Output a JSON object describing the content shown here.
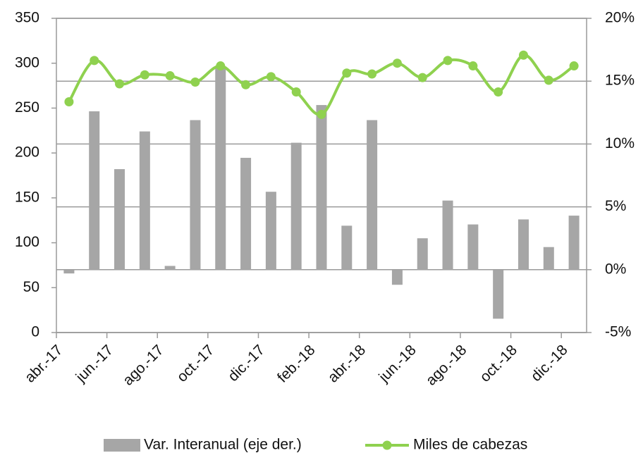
{
  "chart_data": {
    "type": "combo",
    "categories": [
      "abr.-17",
      null,
      "jun.-17",
      null,
      "ago.-17",
      null,
      "oct.-17",
      null,
      "dic.-17",
      null,
      "feb.-18",
      null,
      "abr.-18",
      null,
      "jun.-18",
      null,
      "ago.-18",
      null,
      "oct.-18",
      null,
      "dic.-18"
    ],
    "series": [
      {
        "name": "Var. Interanual (eje der.)",
        "type": "bar",
        "axis": "y2",
        "color": "#a6a6a6",
        "values": [
          -0.3,
          12.6,
          8.0,
          11.0,
          0.3,
          11.9,
          16.2,
          8.9,
          6.2,
          10.1,
          13.1,
          3.5,
          11.9,
          -1.2,
          2.5,
          5.5,
          3.6,
          -3.9,
          4.0,
          1.8,
          4.3
        ]
      },
      {
        "name": "Miles de cabezas",
        "type": "line",
        "axis": "y",
        "color": "#8fd14f",
        "values": [
          257,
          303,
          277,
          287,
          286,
          279,
          297,
          276,
          285,
          268,
          243,
          289,
          288,
          300,
          284,
          303,
          297,
          268,
          309,
          281,
          297
        ]
      }
    ],
    "ylim": [
      0,
      350
    ],
    "yticks": [
      0,
      50,
      100,
      150,
      200,
      250,
      300,
      350
    ],
    "y2lim": [
      -5,
      20
    ],
    "y2ticks": [
      {
        "value": -5,
        "label": "-5%"
      },
      {
        "value": 0,
        "label": "0%"
      },
      {
        "value": 5,
        "label": "5%"
      },
      {
        "value": 10,
        "label": "10%"
      },
      {
        "value": 15,
        "label": "15%"
      },
      {
        "value": 20,
        "label": "20%"
      }
    ],
    "grid": true
  }
}
